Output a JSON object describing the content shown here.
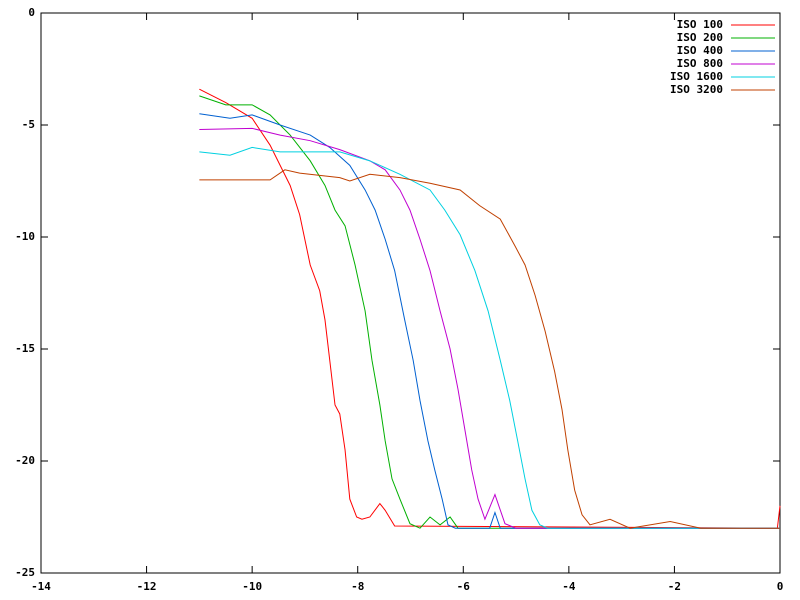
{
  "chart_data": {
    "type": "line",
    "xlim": [
      -14,
      0
    ],
    "ylim": [
      -25,
      0
    ],
    "xticks": [
      -14,
      -12,
      -10,
      -8,
      -6,
      -4,
      -2,
      0
    ],
    "yticks": [
      -25,
      -20,
      -15,
      -10,
      -5,
      0
    ],
    "legend": "upper right",
    "series": [
      {
        "name": "ISO 100",
        "color": "#ff0000",
        "x": [
          -11,
          -10.5,
          -10,
          -9.66,
          -9.28,
          -9.1,
          -8.9,
          -8.72,
          -8.62,
          -8.53,
          -8.43,
          -8.34,
          -8.24,
          -8.15,
          -8.02,
          -7.92,
          -7.77,
          -7.58,
          -7.48,
          -7.3,
          -0.05,
          0
        ],
        "values": [
          -3.4,
          -4.0,
          -4.7,
          -5.9,
          -7.7,
          -9.0,
          -11.25,
          -12.4,
          -13.7,
          -15.5,
          -17.5,
          -17.9,
          -19.5,
          -21.7,
          -22.5,
          -22.6,
          -22.5,
          -21.9,
          -22.2,
          -22.9,
          -23,
          -22
        ]
      },
      {
        "name": "ISO 200",
        "color": "#00b000",
        "x": [
          -11,
          -10.5,
          -10,
          -9.66,
          -9.28,
          -8.9,
          -8.62,
          -8.43,
          -8.24,
          -8.05,
          -7.86,
          -7.73,
          -7.58,
          -7.48,
          -7.35,
          -7.2,
          -7.01,
          -6.82,
          -6.63,
          -6.44,
          -6.25,
          -6.1,
          0
        ],
        "values": [
          -3.7,
          -4.1,
          -4.1,
          -4.55,
          -5.45,
          -6.6,
          -7.7,
          -8.8,
          -9.5,
          -11.25,
          -13.3,
          -15.5,
          -17.5,
          -19.1,
          -20.8,
          -21.7,
          -22.8,
          -23,
          -22.5,
          -22.85,
          -22.5,
          -23,
          -23
        ]
      },
      {
        "name": "ISO 400",
        "color": "#0060d0",
        "x": [
          -11,
          -10.42,
          -10,
          -9.47,
          -8.9,
          -8.53,
          -8.15,
          -7.86,
          -7.67,
          -7.48,
          -7.3,
          -7.11,
          -6.95,
          -6.82,
          -6.67,
          -6.54,
          -6.4,
          -6.29,
          -6.15,
          -5.5,
          -5.4,
          -5.3,
          0
        ],
        "values": [
          -4.5,
          -4.7,
          -4.55,
          -5.0,
          -5.45,
          -6.0,
          -6.8,
          -7.9,
          -8.8,
          -10.1,
          -11.5,
          -13.7,
          -15.5,
          -17.3,
          -19.1,
          -20.4,
          -21.7,
          -22.85,
          -23,
          -23,
          -22.3,
          -23,
          -23
        ]
      },
      {
        "name": "ISO 800",
        "color": "#c000d0",
        "x": [
          -11,
          -10,
          -9.47,
          -8.9,
          -8.34,
          -7.77,
          -7.48,
          -7.2,
          -7.01,
          -6.82,
          -6.63,
          -6.44,
          -6.25,
          -6.1,
          -5.97,
          -5.84,
          -5.72,
          -5.59,
          -5.4,
          -5.21,
          -5.0,
          0
        ],
        "values": [
          -5.2,
          -5.15,
          -5.45,
          -5.7,
          -6.1,
          -6.6,
          -7.0,
          -7.9,
          -8.8,
          -10.1,
          -11.5,
          -13.3,
          -15.0,
          -16.8,
          -18.6,
          -20.4,
          -21.7,
          -22.6,
          -21.5,
          -22.8,
          -23,
          -23
        ]
      },
      {
        "name": "ISO 1600",
        "color": "#00d0e0",
        "x": [
          -11,
          -10.42,
          -10,
          -9.47,
          -8.9,
          -8.34,
          -7.77,
          -7.2,
          -6.63,
          -6.35,
          -6.06,
          -5.78,
          -5.53,
          -5.3,
          -5.12,
          -4.97,
          -4.83,
          -4.7,
          -4.55,
          -4.4,
          0
        ],
        "values": [
          -6.2,
          -6.35,
          -6.0,
          -6.2,
          -6.2,
          -6.2,
          -6.6,
          -7.2,
          -7.9,
          -8.8,
          -9.9,
          -11.5,
          -13.3,
          -15.5,
          -17.3,
          -19.1,
          -20.8,
          -22.2,
          -22.85,
          -23,
          -23
        ]
      },
      {
        "name": "ISO 3200",
        "color": "#c04000",
        "x": [
          -11,
          -9.66,
          -9.38,
          -9.1,
          -8.34,
          -8.15,
          -7.77,
          -7.2,
          -6.63,
          -6.06,
          -5.69,
          -5.3,
          -5.02,
          -4.83,
          -4.64,
          -4.45,
          -4.27,
          -4.13,
          -4.02,
          -3.89,
          -3.75,
          -3.6,
          -3.22,
          -2.84,
          -2.08,
          -1.5,
          0
        ],
        "values": [
          -7.45,
          -7.45,
          -7.0,
          -7.15,
          -7.35,
          -7.5,
          -7.2,
          -7.35,
          -7.6,
          -7.9,
          -8.6,
          -9.2,
          -10.4,
          -11.25,
          -12.6,
          -14.2,
          -16.0,
          -17.7,
          -19.5,
          -21.3,
          -22.4,
          -22.85,
          -22.6,
          -23,
          -22.7,
          -23,
          -23
        ]
      }
    ]
  }
}
